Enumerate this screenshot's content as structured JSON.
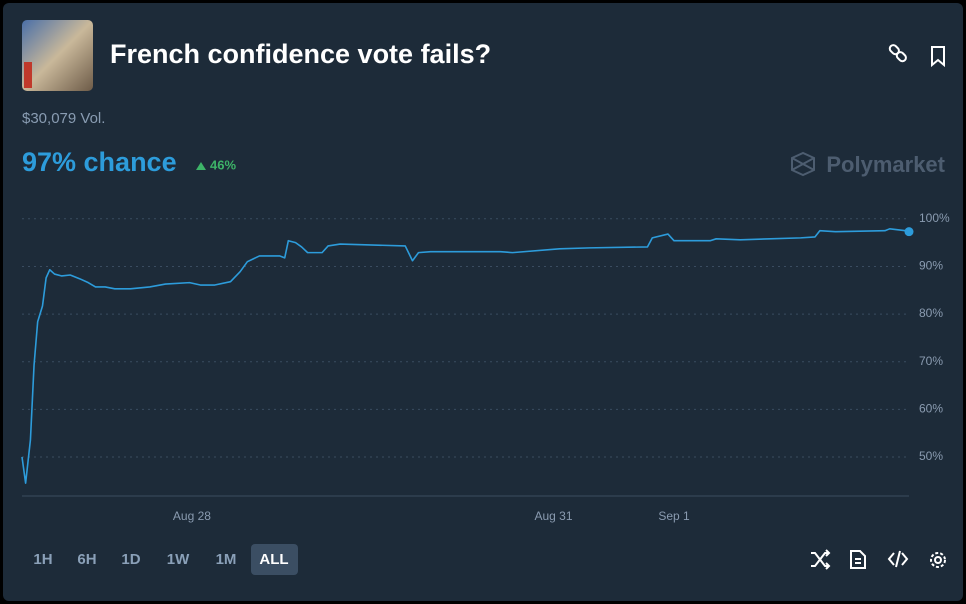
{
  "header": {
    "title": "French confidence vote fails?",
    "volume": "$30,079 Vol.",
    "chance": "97% chance",
    "change": "46%",
    "brand": "Polymarket"
  },
  "chart_data": {
    "type": "line",
    "color": "#2d9cdb",
    "grid": true,
    "x": [
      26.59,
      26.62,
      26.66,
      26.69,
      26.72,
      26.76,
      26.79,
      26.82,
      26.86,
      26.92,
      26.99,
      27.07,
      27.14,
      27.2,
      27.28,
      27.36,
      27.49,
      27.65,
      27.78,
      27.98,
      28.07,
      28.19,
      28.32,
      28.4,
      28.46,
      28.56,
      28.73,
      28.77,
      28.8,
      28.86,
      28.91,
      28.96,
      29.08,
      29.13,
      29.23,
      29.77,
      29.83,
      29.88,
      29.98,
      30.56,
      30.66,
      31.05,
      31.3,
      31.78,
      31.82,
      31.95,
      32.0,
      32.3,
      32.35,
      32.55,
      32.8,
      33.05,
      33.17,
      33.21,
      33.34,
      33.75,
      33.79,
      33.92,
      33.95
    ],
    "values": [
      50.0,
      44.5,
      53.6,
      69.3,
      78.4,
      81.7,
      87.6,
      89.3,
      88.4,
      88.0,
      88.2,
      87.4,
      86.6,
      85.7,
      85.7,
      85.3,
      85.3,
      85.7,
      86.3,
      86.6,
      86.1,
      86.1,
      86.8,
      88.9,
      91.0,
      92.2,
      92.2,
      91.8,
      95.4,
      95.0,
      94.1,
      92.9,
      92.9,
      94.3,
      94.7,
      94.3,
      91.2,
      92.9,
      93.1,
      93.1,
      92.9,
      93.7,
      93.9,
      94.1,
      96.0,
      96.8,
      95.4,
      95.4,
      95.8,
      95.6,
      95.8,
      96.0,
      96.2,
      97.5,
      97.3,
      97.5,
      97.9,
      97.5,
      97.3
    ],
    "xlim": [
      26.59,
      33.95
    ],
    "xticks": [
      {
        "value": 28,
        "label": "Aug 28"
      },
      {
        "value": 31,
        "label": "Aug 31"
      },
      {
        "value": 32,
        "label": "Sep 1"
      }
    ],
    "ylim": [
      41.8,
      102.9
    ],
    "yticks": [
      {
        "value": 50,
        "label": "50%"
      },
      {
        "value": 60,
        "label": "60%"
      },
      {
        "value": 70,
        "label": "70%"
      },
      {
        "value": 80,
        "label": "80%"
      },
      {
        "value": 90,
        "label": "90%"
      },
      {
        "value": 100,
        "label": "100%"
      }
    ]
  },
  "controls": {
    "ranges": [
      "1H",
      "6H",
      "1D",
      "1W",
      "1M",
      "ALL"
    ]
  }
}
